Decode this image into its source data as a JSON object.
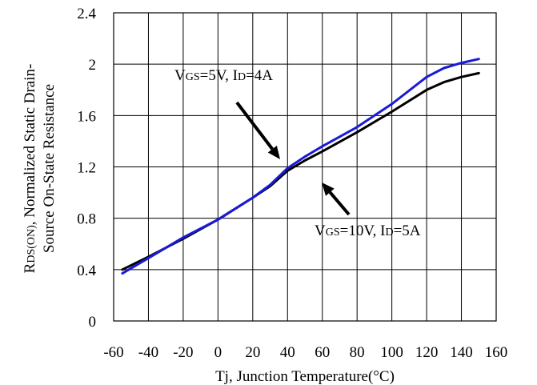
{
  "chart_data": {
    "type": "line",
    "xlabel": "Tj, Junction Temperature(°C)",
    "ylabel_lines": [
      "RDS(ON), Normalized Static Drain-",
      "Source On-State Resistance"
    ],
    "ylabel_parts": [
      {
        "text": "R",
        "sub": "DS(ON)",
        "rest": ", Normalized Static Drain-"
      },
      {
        "text": "Source On-State Resistance"
      }
    ],
    "xlim": [
      -60,
      160
    ],
    "ylim": [
      0,
      2.4
    ],
    "x_ticks": [
      -60,
      -40,
      -20,
      0,
      20,
      40,
      60,
      80,
      100,
      120,
      140,
      160
    ],
    "y_ticks": [
      0,
      0.4,
      0.8,
      1.2,
      1.6,
      2,
      2.4
    ],
    "x_tick_labels": [
      "-60",
      "-40",
      "-20",
      "0",
      "20",
      "40",
      "60",
      "80",
      "100",
      "120",
      "140",
      "160"
    ],
    "y_tick_labels": [
      "0",
      "0.4",
      "0.8",
      "1.2",
      "1.6",
      "2",
      "2.4"
    ],
    "grid": true,
    "series": [
      {
        "name": "VGS=10V, ID=5A",
        "color": "#000000",
        "points": [
          [
            -55,
            0.4
          ],
          [
            -40,
            0.5
          ],
          [
            -20,
            0.64
          ],
          [
            0,
            0.79
          ],
          [
            20,
            0.96
          ],
          [
            30,
            1.05
          ],
          [
            40,
            1.17
          ],
          [
            50,
            1.25
          ],
          [
            60,
            1.32
          ],
          [
            80,
            1.47
          ],
          [
            100,
            1.63
          ],
          [
            120,
            1.8
          ],
          [
            130,
            1.86
          ],
          [
            140,
            1.9
          ],
          [
            150,
            1.93
          ]
        ]
      },
      {
        "name": "VGS=5V, ID=4A",
        "color": "#1a1ad8",
        "points": [
          [
            -55,
            0.37
          ],
          [
            -40,
            0.49
          ],
          [
            -20,
            0.65
          ],
          [
            0,
            0.79
          ],
          [
            20,
            0.96
          ],
          [
            30,
            1.06
          ],
          [
            40,
            1.19
          ],
          [
            50,
            1.28
          ],
          [
            60,
            1.36
          ],
          [
            80,
            1.51
          ],
          [
            100,
            1.69
          ],
          [
            120,
            1.9
          ],
          [
            130,
            1.97
          ],
          [
            140,
            2.01
          ],
          [
            150,
            2.04
          ]
        ]
      }
    ],
    "annotations": [
      {
        "id": "ann5v",
        "label": "VGS=5V, ID=4A",
        "parts": [
          [
            "V",
            "big"
          ],
          [
            "GS",
            "small"
          ],
          [
            "=5V, ",
            "big"
          ],
          [
            "I",
            "big"
          ],
          [
            "D",
            "small"
          ],
          [
            "=4A",
            "big"
          ]
        ]
      },
      {
        "id": "ann10v",
        "label": "VGS=10V, ID=5A",
        "parts": [
          [
            "V",
            "big"
          ],
          [
            "GS",
            "small"
          ],
          [
            "=10V, ",
            "big"
          ],
          [
            "I",
            "big"
          ],
          [
            "D",
            "small"
          ],
          [
            "=5A",
            "big"
          ]
        ]
      }
    ]
  }
}
